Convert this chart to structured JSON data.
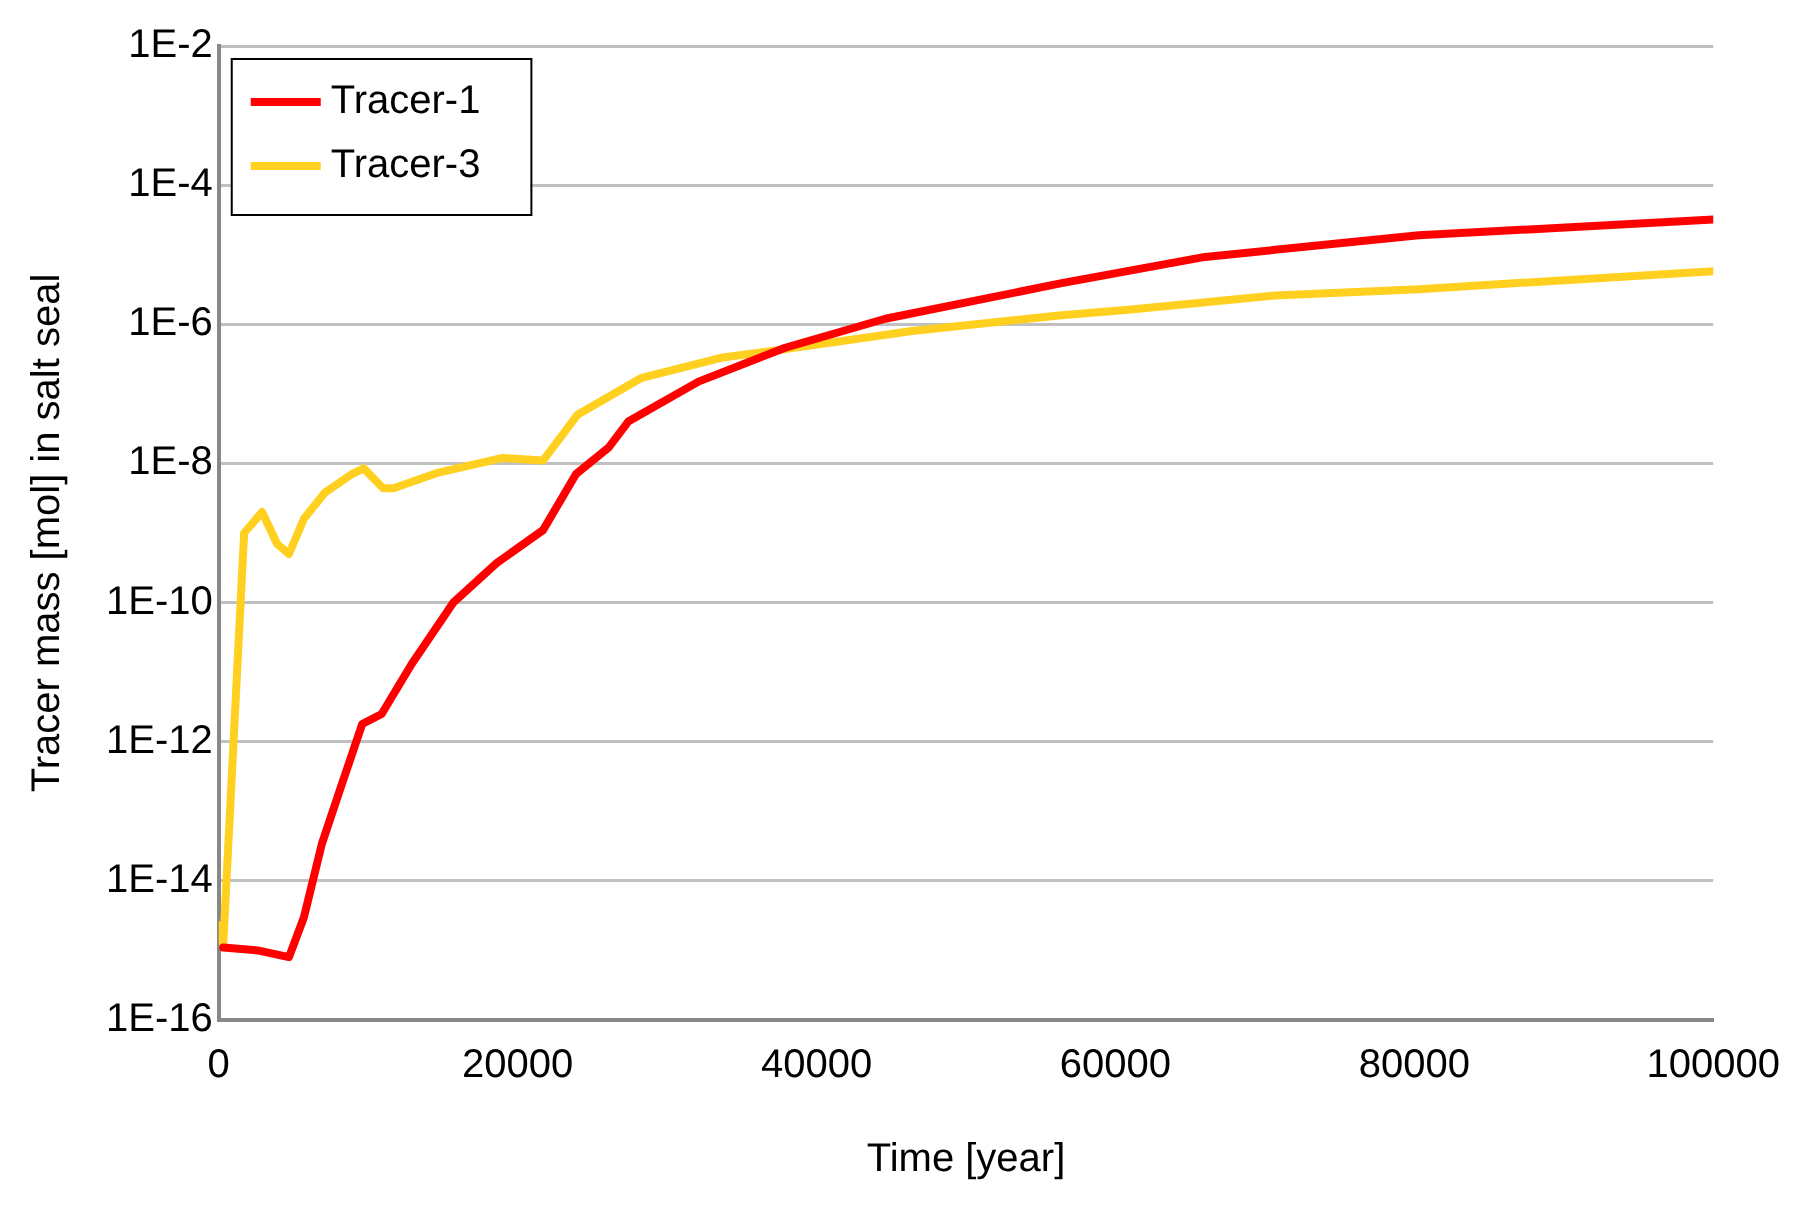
{
  "chart_data": {
    "type": "line",
    "xlabel": "Time [year]",
    "ylabel": "Tracer mass [mol] in salt seal",
    "log": "y",
    "grid": "y",
    "legend": "top left",
    "marker": "none",
    "line_style": "solid",
    "xlim": [
      0,
      100000
    ],
    "xticks": [
      0,
      20000,
      40000,
      60000,
      80000,
      100000
    ],
    "ylim": [
      1e-16,
      0.01
    ],
    "yticks": [
      {
        "value": 1e-16,
        "label": "1E-16"
      },
      {
        "value": 1e-14,
        "label": "1E-14"
      },
      {
        "value": 1e-12,
        "label": "1E-12"
      },
      {
        "value": 1e-10,
        "label": "1E-10"
      },
      {
        "value": 1e-08,
        "label": "1E-8"
      },
      {
        "value": 1e-06,
        "label": "1E-6"
      },
      {
        "value": 0.0001,
        "label": "1E-4"
      },
      {
        "value": 0.01,
        "label": "1E-2"
      }
    ],
    "series": [
      {
        "name": "Tracer-1",
        "color": "#ff0000",
        "x": [
          300,
          2600,
          4700,
          5700,
          6900,
          8100,
          9600,
          10900,
          12900,
          15700,
          18600,
          21700,
          23900,
          26100,
          27400,
          32100,
          37900,
          44600,
          56400,
          66000,
          80300,
          100000
        ],
        "values": [
          1.1e-15,
          1e-15,
          8e-16,
          3e-15,
          3.4e-14,
          2e-13,
          1.8e-12,
          2.5e-12,
          1.3e-11,
          1e-10,
          3.7e-10,
          1.1e-09,
          7e-09,
          1.7e-08,
          4e-08,
          1.5e-07,
          4.6e-07,
          1.2e-06,
          3.9e-06,
          9.3e-06,
          1.9e-05,
          3.2e-05
        ]
      },
      {
        "name": "Tracer-3",
        "color": "#ffd020",
        "x": [
          0,
          300,
          1700,
          2900,
          3900,
          4700,
          5700,
          7100,
          8900,
          9700,
          11000,
          11700,
          14700,
          19000,
          21700,
          24000,
          28300,
          33600,
          37900,
          46400,
          56400,
          60700,
          70700,
          80300,
          100000
        ],
        "values": [
          2.3e-15,
          1.2e-15,
          1e-09,
          2e-09,
          7e-10,
          5e-10,
          1.6e-09,
          3.8e-09,
          7e-09,
          8.5e-09,
          4.4e-09,
          4.4e-09,
          7.4e-09,
          1.2e-08,
          1.1e-08,
          5e-08,
          1.7e-07,
          3.3e-07,
          4.4e-07,
          8e-07,
          1.35e-06,
          1.6e-06,
          2.6e-06,
          3.2e-06,
          5.8e-06
        ]
      }
    ]
  }
}
